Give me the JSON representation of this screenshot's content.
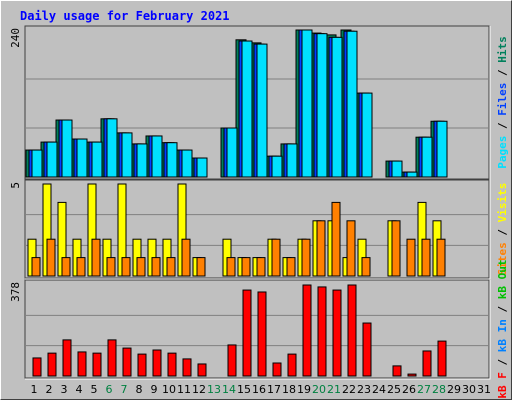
{
  "chart_data": [
    {
      "type": "bar",
      "title": "Daily usage for February 2021",
      "title_color": "#0000ff",
      "ylim": [
        0,
        240
      ],
      "legend_separator": " / ",
      "series": [
        {
          "name": "Pages",
          "color": "#00e0ff",
          "values": [
            44,
            57,
            93,
            62,
            57,
            95,
            72,
            54,
            67,
            56,
            44,
            31,
            0,
            80,
            222,
            217,
            34,
            54,
            240,
            234,
            228,
            238,
            137,
            0,
            26,
            8,
            65,
            91,
            0,
            0,
            0
          ]
        },
        {
          "name": "Files",
          "color": "#0040ff",
          "values": [
            44,
            57,
            93,
            62,
            57,
            95,
            72,
            54,
            67,
            56,
            44,
            31,
            0,
            80,
            222,
            217,
            34,
            54,
            240,
            234,
            228,
            238,
            137,
            0,
            26,
            8,
            65,
            91,
            0,
            0,
            0
          ]
        },
        {
          "name": "Hits",
          "color": "#00805c",
          "values": [
            44,
            57,
            93,
            62,
            57,
            95,
            72,
            54,
            67,
            56,
            44,
            31,
            0,
            80,
            224,
            219,
            34,
            54,
            240,
            235,
            232,
            240,
            137,
            0,
            26,
            8,
            65,
            91,
            0,
            0,
            0
          ]
        }
      ]
    },
    {
      "type": "bar",
      "ylim": [
        0,
        5
      ],
      "legend_separator": " / ",
      "series": [
        {
          "name": "Sites",
          "color": "#ff8000",
          "values": [
            1,
            2,
            1,
            1,
            2,
            1,
            1,
            1,
            1,
            1,
            2,
            1,
            0,
            1,
            1,
            1,
            2,
            1,
            2,
            3,
            4,
            3,
            1,
            0,
            3,
            2,
            2,
            2,
            0,
            0,
            0
          ]
        },
        {
          "name": "Visits",
          "color": "#ffff00",
          "values": [
            2,
            5,
            4,
            2,
            5,
            2,
            5,
            2,
            2,
            2,
            5,
            1,
            0,
            2,
            1,
            1,
            2,
            1,
            2,
            3,
            3,
            1,
            2,
            0,
            3,
            0,
            4,
            3,
            0,
            0,
            0
          ]
        }
      ]
    },
    {
      "type": "bar",
      "ylim": [
        0,
        378
      ],
      "legend_separator": " / ",
      "categories": [
        "1",
        "2",
        "3",
        "4",
        "5",
        "6",
        "7",
        "8",
        "9",
        "10",
        "11",
        "12",
        "13",
        "14",
        "15",
        "16",
        "17",
        "18",
        "19",
        "20",
        "21",
        "22",
        "23",
        "24",
        "25",
        "26",
        "27",
        "28",
        "29",
        "30",
        "31"
      ],
      "label_colors": [
        "#000000",
        "#000000",
        "#000000",
        "#000000",
        "#000000",
        "#008040",
        "#008040",
        "#000000",
        "#000000",
        "#000000",
        "#000000",
        "#000000",
        "#008040",
        "#008040",
        "#000000",
        "#000000",
        "#000000",
        "#000000",
        "#000000",
        "#008040",
        "#008040",
        "#000000",
        "#000000",
        "#000000",
        "#000000",
        "#000000",
        "#008040",
        "#008040",
        "#000000",
        "#000000",
        "#000000"
      ],
      "series": [
        {
          "name": "kB F",
          "color": "#ff0000",
          "values": [
            75,
            95,
            150,
            100,
            95,
            150,
            116,
            91,
            108,
            95,
            71,
            50,
            0,
            129,
            357,
            349,
            54,
            91,
            378,
            370,
            357,
            378,
            220,
            0,
            42,
            8,
            104,
            145,
            0,
            0,
            0
          ]
        },
        {
          "name": "kB In",
          "color": "#0080ff",
          "values": [
            0,
            0,
            0,
            0,
            0,
            0,
            0,
            0,
            0,
            0,
            0,
            0,
            0,
            0,
            0,
            0,
            0,
            0,
            0,
            0,
            0,
            0,
            0,
            0,
            0,
            0,
            0,
            0,
            0,
            0,
            0
          ]
        },
        {
          "name": "kB Out",
          "color": "#00c000",
          "values": [
            0,
            0,
            0,
            0,
            0,
            0,
            0,
            0,
            0,
            0,
            0,
            0,
            0,
            0,
            0,
            0,
            0,
            0,
            0,
            0,
            0,
            0,
            0,
            0,
            0,
            0,
            0,
            0,
            0,
            0,
            0
          ]
        }
      ]
    }
  ]
}
